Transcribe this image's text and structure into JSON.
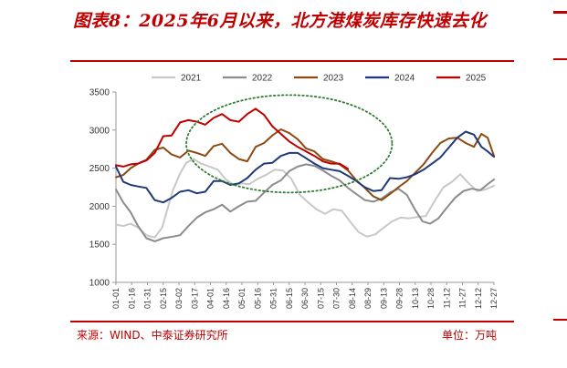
{
  "figure": {
    "title": "图表8：2025年6月以来，北方港煤炭库存快速去化",
    "source": "来源：WIND、中泰证券研究所",
    "unit": "单位：万吨"
  },
  "colors": {
    "accent": "#c00000",
    "s2021": "#c8c8c8",
    "s2022": "#8c8c8c",
    "s2023": "#8b4a12",
    "s2024": "#1f3a78",
    "s2025": "#c00000",
    "highlight": "#2e7d2e"
  },
  "chart_data": {
    "type": "line",
    "title": "",
    "xlabel": "",
    "ylabel": "",
    "ylim": [
      1000,
      3500
    ],
    "yticks": [
      1000,
      1500,
      2000,
      2500,
      3000,
      3500
    ],
    "tick_labels": [
      "01-01",
      "01-16",
      "01-31",
      "02-15",
      "03-02",
      "03-17",
      "04-01",
      "04-16",
      "05-01",
      "05-16",
      "05-31",
      "06-15",
      "06-30",
      "07-15",
      "07-30",
      "08-14",
      "08-29",
      "09-13",
      "09-28",
      "10-13",
      "10-28",
      "11-12",
      "11-27",
      "12-12",
      "12-27"
    ],
    "x_start_day": 1,
    "x_end_day": 361,
    "legend_position": "top",
    "highlight": {
      "type": "ellipse",
      "center_day": 166,
      "center_value": 2820,
      "half_width_days": 98,
      "half_height_value": 640,
      "note": "dotted green circle over May–July"
    },
    "series": [
      {
        "name": "2021",
        "color_key": "s2021",
        "points": [
          [
            1,
            1760
          ],
          [
            8,
            1740
          ],
          [
            15,
            1770
          ],
          [
            22,
            1720
          ],
          [
            30,
            1620
          ],
          [
            38,
            1590
          ],
          [
            45,
            1720
          ],
          [
            55,
            2200
          ],
          [
            62,
            2430
          ],
          [
            68,
            2570
          ],
          [
            75,
            2620
          ],
          [
            82,
            2560
          ],
          [
            90,
            2520
          ],
          [
            98,
            2480
          ],
          [
            105,
            2360
          ],
          [
            113,
            2280
          ],
          [
            120,
            2300
          ],
          [
            128,
            2290
          ],
          [
            136,
            2360
          ],
          [
            145,
            2420
          ],
          [
            152,
            2480
          ],
          [
            160,
            2470
          ],
          [
            168,
            2360
          ],
          [
            176,
            2150
          ],
          [
            184,
            2050
          ],
          [
            192,
            1960
          ],
          [
            200,
            1900
          ],
          [
            208,
            1960
          ],
          [
            216,
            1940
          ],
          [
            224,
            1800
          ],
          [
            232,
            1660
          ],
          [
            240,
            1600
          ],
          [
            248,
            1630
          ],
          [
            256,
            1720
          ],
          [
            264,
            1800
          ],
          [
            272,
            1850
          ],
          [
            280,
            1840
          ],
          [
            288,
            1860
          ],
          [
            296,
            1870
          ],
          [
            305,
            2080
          ],
          [
            313,
            2250
          ],
          [
            321,
            2320
          ],
          [
            329,
            2420
          ],
          [
            337,
            2300
          ],
          [
            345,
            2200
          ],
          [
            353,
            2220
          ],
          [
            361,
            2270
          ]
        ]
      },
      {
        "name": "2022",
        "color_key": "s2022",
        "points": [
          [
            1,
            2220
          ],
          [
            8,
            2050
          ],
          [
            15,
            1920
          ],
          [
            22,
            1740
          ],
          [
            30,
            1580
          ],
          [
            38,
            1540
          ],
          [
            46,
            1580
          ],
          [
            55,
            1600
          ],
          [
            62,
            1620
          ],
          [
            70,
            1740
          ],
          [
            78,
            1850
          ],
          [
            86,
            1920
          ],
          [
            94,
            1960
          ],
          [
            102,
            2020
          ],
          [
            110,
            1930
          ],
          [
            118,
            2000
          ],
          [
            126,
            2060
          ],
          [
            134,
            2070
          ],
          [
            142,
            2180
          ],
          [
            150,
            2280
          ],
          [
            158,
            2340
          ],
          [
            166,
            2460
          ],
          [
            174,
            2520
          ],
          [
            182,
            2550
          ],
          [
            190,
            2530
          ],
          [
            198,
            2470
          ],
          [
            206,
            2400
          ],
          [
            214,
            2340
          ],
          [
            222,
            2240
          ],
          [
            230,
            2160
          ],
          [
            238,
            2080
          ],
          [
            246,
            2060
          ],
          [
            254,
            2100
          ],
          [
            262,
            2180
          ],
          [
            270,
            2230
          ],
          [
            278,
            2150
          ],
          [
            286,
            1950
          ],
          [
            293,
            1800
          ],
          [
            300,
            1770
          ],
          [
            308,
            1840
          ],
          [
            316,
            1980
          ],
          [
            324,
            2110
          ],
          [
            332,
            2200
          ],
          [
            340,
            2230
          ],
          [
            348,
            2210
          ],
          [
            355,
            2290
          ],
          [
            361,
            2350
          ]
        ]
      },
      {
        "name": "2023",
        "color_key": "s2023",
        "points": [
          [
            1,
            2380
          ],
          [
            8,
            2410
          ],
          [
            15,
            2500
          ],
          [
            22,
            2560
          ],
          [
            30,
            2610
          ],
          [
            38,
            2740
          ],
          [
            46,
            2770
          ],
          [
            54,
            2680
          ],
          [
            62,
            2640
          ],
          [
            70,
            2730
          ],
          [
            78,
            2700
          ],
          [
            86,
            2660
          ],
          [
            94,
            2790
          ],
          [
            102,
            2820
          ],
          [
            110,
            2700
          ],
          [
            118,
            2620
          ],
          [
            126,
            2590
          ],
          [
            134,
            2780
          ],
          [
            142,
            2830
          ],
          [
            150,
            2930
          ],
          [
            158,
            3010
          ],
          [
            166,
            2960
          ],
          [
            174,
            2880
          ],
          [
            182,
            2760
          ],
          [
            190,
            2720
          ],
          [
            198,
            2620
          ],
          [
            206,
            2590
          ],
          [
            214,
            2550
          ],
          [
            222,
            2470
          ],
          [
            230,
            2340
          ],
          [
            238,
            2240
          ],
          [
            246,
            2130
          ],
          [
            254,
            2080
          ],
          [
            262,
            2160
          ],
          [
            270,
            2250
          ],
          [
            278,
            2330
          ],
          [
            286,
            2440
          ],
          [
            294,
            2550
          ],
          [
            302,
            2700
          ],
          [
            310,
            2830
          ],
          [
            318,
            2890
          ],
          [
            326,
            2900
          ],
          [
            334,
            2830
          ],
          [
            342,
            2780
          ],
          [
            349,
            2950
          ],
          [
            355,
            2900
          ],
          [
            361,
            2660
          ]
        ]
      },
      {
        "name": "2024",
        "color_key": "s2024",
        "points": [
          [
            1,
            2520
          ],
          [
            8,
            2320
          ],
          [
            15,
            2280
          ],
          [
            22,
            2260
          ],
          [
            30,
            2240
          ],
          [
            38,
            2080
          ],
          [
            46,
            2050
          ],
          [
            54,
            2110
          ],
          [
            62,
            2190
          ],
          [
            70,
            2210
          ],
          [
            78,
            2170
          ],
          [
            86,
            2190
          ],
          [
            94,
            2330
          ],
          [
            102,
            2330
          ],
          [
            110,
            2280
          ],
          [
            118,
            2300
          ],
          [
            126,
            2370
          ],
          [
            134,
            2480
          ],
          [
            142,
            2560
          ],
          [
            150,
            2570
          ],
          [
            158,
            2660
          ],
          [
            166,
            2700
          ],
          [
            174,
            2700
          ],
          [
            182,
            2630
          ],
          [
            190,
            2560
          ],
          [
            198,
            2500
          ],
          [
            206,
            2480
          ],
          [
            214,
            2460
          ],
          [
            222,
            2400
          ],
          [
            230,
            2330
          ],
          [
            238,
            2250
          ],
          [
            246,
            2200
          ],
          [
            254,
            2210
          ],
          [
            262,
            2370
          ],
          [
            270,
            2360
          ],
          [
            278,
            2380
          ],
          [
            286,
            2420
          ],
          [
            294,
            2480
          ],
          [
            302,
            2560
          ],
          [
            310,
            2640
          ],
          [
            318,
            2770
          ],
          [
            326,
            2900
          ],
          [
            334,
            2980
          ],
          [
            342,
            2940
          ],
          [
            349,
            2780
          ],
          [
            355,
            2720
          ],
          [
            361,
            2650
          ]
        ]
      },
      {
        "name": "2025",
        "color_key": "s2025",
        "points": [
          [
            1,
            2540
          ],
          [
            8,
            2520
          ],
          [
            15,
            2550
          ],
          [
            22,
            2560
          ],
          [
            30,
            2600
          ],
          [
            38,
            2700
          ],
          [
            46,
            2920
          ],
          [
            54,
            2930
          ],
          [
            62,
            3100
          ],
          [
            70,
            3130
          ],
          [
            78,
            3110
          ],
          [
            86,
            3070
          ],
          [
            94,
            3160
          ],
          [
            102,
            3210
          ],
          [
            110,
            3130
          ],
          [
            118,
            3110
          ],
          [
            126,
            3210
          ],
          [
            134,
            3280
          ],
          [
            142,
            3200
          ],
          [
            150,
            3050
          ],
          [
            158,
            2950
          ],
          [
            166,
            2850
          ],
          [
            174,
            2780
          ],
          [
            182,
            2720
          ],
          [
            190,
            2660
          ],
          [
            198,
            2590
          ],
          [
            206,
            2560
          ],
          [
            214,
            2560
          ],
          [
            222,
            2490
          ]
        ]
      }
    ]
  }
}
